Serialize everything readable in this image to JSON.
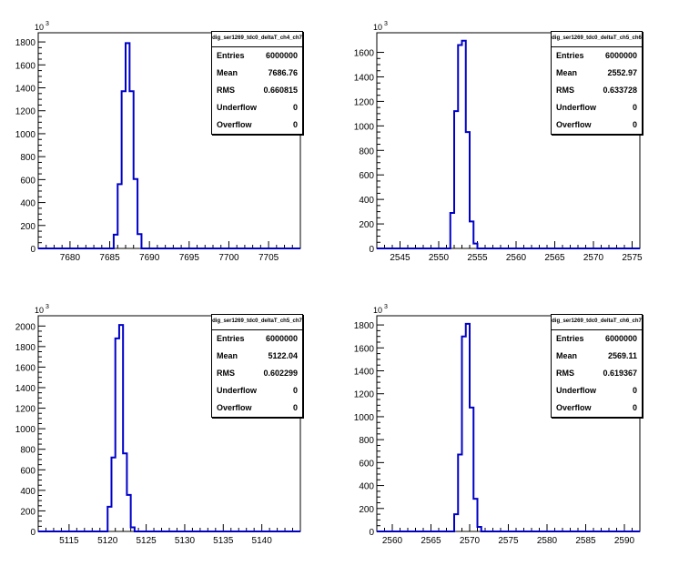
{
  "chart_data": [
    {
      "type": "histogram",
      "exponent_label": "10",
      "exponent_power": "3",
      "xlim": [
        7676,
        7709
      ],
      "ylim": [
        0,
        1880
      ],
      "x_ticks": [
        7680,
        7685,
        7690,
        7695,
        7700,
        7705
      ],
      "y_ticks": [
        0,
        200,
        400,
        600,
        800,
        1000,
        1200,
        1400,
        1600,
        1800
      ],
      "bin_width": 0.5,
      "bins": [
        {
          "x": 7685.0,
          "y": 0
        },
        {
          "x": 7685.5,
          "y": 120
        },
        {
          "x": 7686.0,
          "y": 560
        },
        {
          "x": 7686.5,
          "y": 1370
        },
        {
          "x": 7687.0,
          "y": 1790
        },
        {
          "x": 7687.5,
          "y": 1370
        },
        {
          "x": 7688.0,
          "y": 605
        },
        {
          "x": 7688.5,
          "y": 125
        },
        {
          "x": 7689.0,
          "y": 0
        }
      ],
      "stats": {
        "title": "dig_ser1269_tdc0_deltaT_ch4_ch7",
        "rows": [
          {
            "key": "Entries",
            "value": "6000000"
          },
          {
            "key": "Mean",
            "value": "7686.76"
          },
          {
            "key": "RMS",
            "value": "0.660815"
          },
          {
            "key": "Underflow",
            "value": "0"
          },
          {
            "key": "Overflow",
            "value": "0"
          }
        ]
      }
    },
    {
      "type": "histogram",
      "exponent_label": "10",
      "exponent_power": "3",
      "xlim": [
        2542,
        2576
      ],
      "ylim": [
        0,
        1760
      ],
      "x_ticks": [
        2545,
        2550,
        2555,
        2560,
        2565,
        2570,
        2575
      ],
      "y_ticks": [
        0,
        200,
        400,
        600,
        800,
        1000,
        1200,
        1400,
        1600
      ],
      "bin_width": 0.5,
      "bins": [
        {
          "x": 2551.0,
          "y": 0
        },
        {
          "x": 2551.5,
          "y": 290
        },
        {
          "x": 2552.0,
          "y": 1120
        },
        {
          "x": 2552.5,
          "y": 1660
        },
        {
          "x": 2553.0,
          "y": 1695
        },
        {
          "x": 2553.5,
          "y": 950
        },
        {
          "x": 2554.0,
          "y": 220
        },
        {
          "x": 2554.5,
          "y": 40
        },
        {
          "x": 2555.0,
          "y": 0
        }
      ],
      "stats": {
        "title": "dig_ser1269_tdc0_deltaT_ch5_ch6",
        "rows": [
          {
            "key": "Entries",
            "value": "6000000"
          },
          {
            "key": "Mean",
            "value": "2552.97"
          },
          {
            "key": "RMS",
            "value": "0.633728"
          },
          {
            "key": "Underflow",
            "value": "0"
          },
          {
            "key": "Overflow",
            "value": "0"
          }
        ]
      }
    },
    {
      "type": "histogram",
      "exponent_label": "10",
      "exponent_power": "3",
      "xlim": [
        5111,
        5145
      ],
      "ylim": [
        0,
        2100
      ],
      "x_ticks": [
        5115,
        5120,
        5125,
        5130,
        5135,
        5140
      ],
      "y_ticks": [
        0,
        200,
        400,
        600,
        800,
        1000,
        1200,
        1400,
        1600,
        1800,
        2000
      ],
      "bin_width": 0.5,
      "bins": [
        {
          "x": 5119.5,
          "y": 0
        },
        {
          "x": 5120.0,
          "y": 240
        },
        {
          "x": 5120.5,
          "y": 720
        },
        {
          "x": 5121.0,
          "y": 1880
        },
        {
          "x": 5121.5,
          "y": 2010
        },
        {
          "x": 5122.0,
          "y": 760
        },
        {
          "x": 5122.5,
          "y": 355
        },
        {
          "x": 5123.0,
          "y": 40
        },
        {
          "x": 5123.5,
          "y": 0
        }
      ],
      "stats": {
        "title": "dig_ser1269_tdc0_deltaT_ch5_ch7",
        "rows": [
          {
            "key": "Entries",
            "value": "6000000"
          },
          {
            "key": "Mean",
            "value": "5122.04"
          },
          {
            "key": "RMS",
            "value": "0.602299"
          },
          {
            "key": "Underflow",
            "value": "0"
          },
          {
            "key": "Overflow",
            "value": "0"
          }
        ]
      }
    },
    {
      "type": "histogram",
      "exponent_label": "10",
      "exponent_power": "3",
      "xlim": [
        2558,
        2592
      ],
      "ylim": [
        0,
        1880
      ],
      "x_ticks": [
        2560,
        2565,
        2570,
        2575,
        2580,
        2585,
        2590
      ],
      "y_ticks": [
        0,
        200,
        400,
        600,
        800,
        1000,
        1200,
        1400,
        1600,
        1800
      ],
      "bin_width": 0.5,
      "bins": [
        {
          "x": 2567.5,
          "y": 0
        },
        {
          "x": 2568.0,
          "y": 150
        },
        {
          "x": 2568.5,
          "y": 670
        },
        {
          "x": 2569.0,
          "y": 1700
        },
        {
          "x": 2569.5,
          "y": 1810
        },
        {
          "x": 2570.0,
          "y": 1080
        },
        {
          "x": 2570.5,
          "y": 285
        },
        {
          "x": 2571.0,
          "y": 40
        },
        {
          "x": 2571.5,
          "y": 0
        }
      ],
      "stats": {
        "title": "dig_ser1269_tdc0_deltaT_ch6_ch7",
        "rows": [
          {
            "key": "Entries",
            "value": "6000000"
          },
          {
            "key": "Mean",
            "value": "2569.11"
          },
          {
            "key": "RMS",
            "value": "0.619367"
          },
          {
            "key": "Underflow",
            "value": "0"
          },
          {
            "key": "Overflow",
            "value": "0"
          }
        ]
      }
    }
  ]
}
